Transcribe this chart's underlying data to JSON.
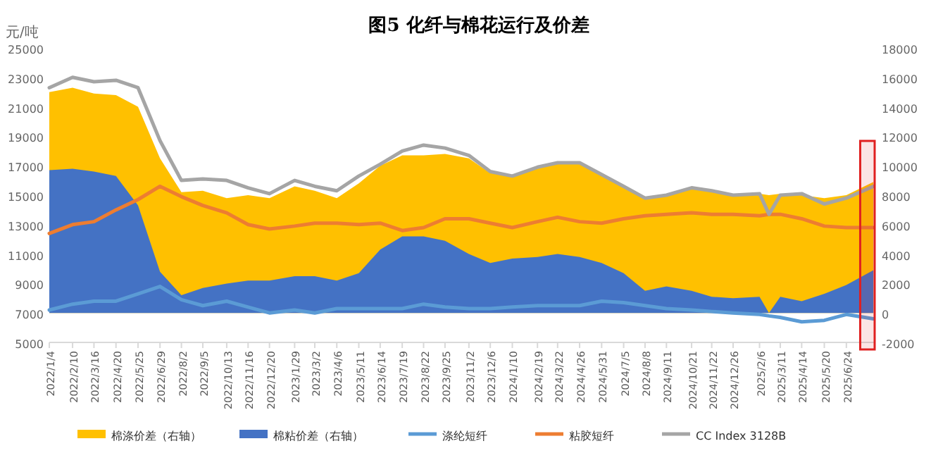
{
  "chart_data": {
    "type": "line",
    "title": "图5  化纤与棉花运行及价差",
    "ylabel": "元/吨",
    "x": [
      "2022-01-04",
      "2022-02-10",
      "2022-03-16",
      "2022-04-20",
      "2022-05-25",
      "2022-06-29",
      "2022-08-02",
      "2022-09-05",
      "2022-10-13",
      "2022-11-16",
      "2022-12-20",
      "2023-01-29",
      "2023-03-02",
      "2023-04-06",
      "2023-05-11",
      "2023-06-14",
      "2023-07-19",
      "2023-08-22",
      "2023-09-25",
      "2023-11-02",
      "2023-12-06",
      "2024-01-10",
      "2024-02-19",
      "2024-03-22",
      "2024-04-26",
      "2024-05-31",
      "2024-07-05",
      "2024-08-08",
      "2024-09-11",
      "2024-10-21",
      "2024-11-22",
      "2024-12-26",
      "2025-02-06",
      "2025-02-21",
      "2025-03-11",
      "2025-04-14",
      "2025-05-20",
      "2025-06-24",
      "2025-08-06"
    ],
    "series": [
      {
        "name": "棉涤价差（右轴）",
        "type": "area",
        "axis": "y2",
        "color": "#ffc000",
        "values": [
          15000,
          15300,
          14900,
          14800,
          14000,
          10500,
          8200,
          8300,
          7800,
          8000,
          7800,
          8600,
          8300,
          7800,
          8800,
          10000,
          10700,
          10700,
          10800,
          10500,
          9500,
          9300,
          9800,
          10200,
          10300,
          9300,
          8500,
          7800,
          8000,
          8500,
          8300,
          8000,
          8100,
          8000,
          8100,
          8000,
          7800,
          8000,
          8900
        ]
      },
      {
        "name": "棉粘价差（右轴）",
        "type": "area",
        "axis": "y2",
        "color": "#4472c4",
        "values": [
          9700,
          9800,
          9600,
          9300,
          7300,
          2800,
          1200,
          1700,
          2000,
          2200,
          2200,
          2500,
          2500,
          2200,
          2700,
          4300,
          5200,
          5200,
          4900,
          4000,
          3400,
          3700,
          3800,
          4000,
          3800,
          3400,
          2700,
          1500,
          1800,
          1500,
          1100,
          1000,
          1100,
          0,
          1100,
          800,
          1300,
          1900,
          2900
        ]
      },
      {
        "name": "涤纶短纤",
        "type": "line",
        "color": "#5b9bd5",
        "values": [
          7200,
          7600,
          7800,
          7800,
          8300,
          8800,
          7900,
          7500,
          7800,
          7400,
          7000,
          7200,
          7000,
          7300,
          7300,
          7300,
          7300,
          7600,
          7400,
          7300,
          7300,
          7400,
          7500,
          7500,
          7500,
          7800,
          7700,
          7500,
          7300,
          7200,
          7100,
          7000,
          6900,
          6800,
          6700,
          6400,
          6500,
          6900,
          6600
        ]
      },
      {
        "name": "粘胶短纤",
        "type": "line",
        "color": "#ed7d31",
        "values": [
          12400,
          13000,
          13200,
          14000,
          14700,
          15600,
          14900,
          14300,
          13800,
          13000,
          12700,
          12900,
          13100,
          13100,
          13000,
          13100,
          12600,
          12800,
          13400,
          13400,
          13100,
          12800,
          13200,
          13500,
          13200,
          13100,
          13400,
          13600,
          13700,
          13800,
          13700,
          13700,
          13600,
          13700,
          13700,
          13400,
          12900,
          12800,
          12800
        ]
      },
      {
        "name": "CC Index 3128B",
        "type": "line",
        "color": "#a5a5a5",
        "values": [
          22300,
          23000,
          22700,
          22800,
          22300,
          18700,
          16000,
          16100,
          16000,
          15500,
          15100,
          16000,
          15600,
          15300,
          16300,
          17100,
          18000,
          18400,
          18200,
          17700,
          16600,
          16300,
          16900,
          17200,
          17200,
          16400,
          15600,
          14800,
          15000,
          15500,
          15300,
          15000,
          15100,
          13700,
          15000,
          15100,
          14400,
          14800,
          15600
        ]
      }
    ],
    "xlim": [
      "2022-01-04",
      "2025-08-08"
    ],
    "xticks": [
      {
        "value": "2022-01-04",
        "label": "2022/1/4"
      },
      {
        "value": "2022-02-10",
        "label": "2022/2/10"
      },
      {
        "value": "2022-03-16",
        "label": "2022/3/16"
      },
      {
        "value": "2022-04-20",
        "label": "2022/4/20"
      },
      {
        "value": "2022-05-25",
        "label": "2022/5/25"
      },
      {
        "value": "2022-06-29",
        "label": "2022/6/29"
      },
      {
        "value": "2022-08-02",
        "label": "2022/8/2"
      },
      {
        "value": "2022-09-05",
        "label": "2022/9/5"
      },
      {
        "value": "2022-10-13",
        "label": "2022/10/13"
      },
      {
        "value": "2022-11-16",
        "label": "2022/11/16"
      },
      {
        "value": "2022-12-20",
        "label": "2022/12/20"
      },
      {
        "value": "2023-01-29",
        "label": "2023/1/29"
      },
      {
        "value": "2023-03-02",
        "label": "2023/3/2"
      },
      {
        "value": "2023-04-06",
        "label": "2023/4/6"
      },
      {
        "value": "2023-05-11",
        "label": "2023/5/11"
      },
      {
        "value": "2023-06-14",
        "label": "2023/6/14"
      },
      {
        "value": "2023-07-19",
        "label": "2023/7/19"
      },
      {
        "value": "2023-08-22",
        "label": "2023/8/22"
      },
      {
        "value": "2023-09-25",
        "label": "2023/9/25"
      },
      {
        "value": "2023-11-02",
        "label": "2023/11/2"
      },
      {
        "value": "2023-12-06",
        "label": "2023/12/6"
      },
      {
        "value": "2024-01-10",
        "label": "2024/1/10"
      },
      {
        "value": "2024-02-19",
        "label": "2024/2/19"
      },
      {
        "value": "2024-03-22",
        "label": "2024/3/22"
      },
      {
        "value": "2024-04-26",
        "label": "2024/4/26"
      },
      {
        "value": "2024-05-31",
        "label": "2024/5/31"
      },
      {
        "value": "2024-07-05",
        "label": "2024/7/5"
      },
      {
        "value": "2024-08-08",
        "label": "2024/8/8"
      },
      {
        "value": "2024-09-11",
        "label": "2024/9/11"
      },
      {
        "value": "2024-10-21",
        "label": "2024/10/21"
      },
      {
        "value": "2024-11-22",
        "label": "2024/11/22"
      },
      {
        "value": "2024-12-26",
        "label": "2024/12/26"
      },
      {
        "value": "2025-02-06",
        "label": "2025/2/6"
      },
      {
        "value": "2025-03-11",
        "label": "2025/3/11"
      },
      {
        "value": "2025-04-14",
        "label": "2025/4/14"
      },
      {
        "value": "2025-05-20",
        "label": "2025/5/20"
      },
      {
        "value": "2025-06-24",
        "label": "2025/6/24"
      }
    ],
    "ylim": [
      5000,
      25000
    ],
    "yticks": [
      5000,
      7000,
      9000,
      11000,
      13000,
      15000,
      17000,
      19000,
      21000,
      23000,
      25000
    ],
    "y2lim": [
      -2000,
      18000
    ],
    "y2ticks": [
      -2000,
      0,
      2000,
      4000,
      6000,
      8000,
      10000,
      12000,
      14000,
      16000,
      18000
    ],
    "bands": [
      {
        "axis": "x",
        "from": "2025-07-16",
        "to": "2025-08-08",
        "color": "#e02020"
      }
    ],
    "legend": "bottom",
    "grid": false
  }
}
